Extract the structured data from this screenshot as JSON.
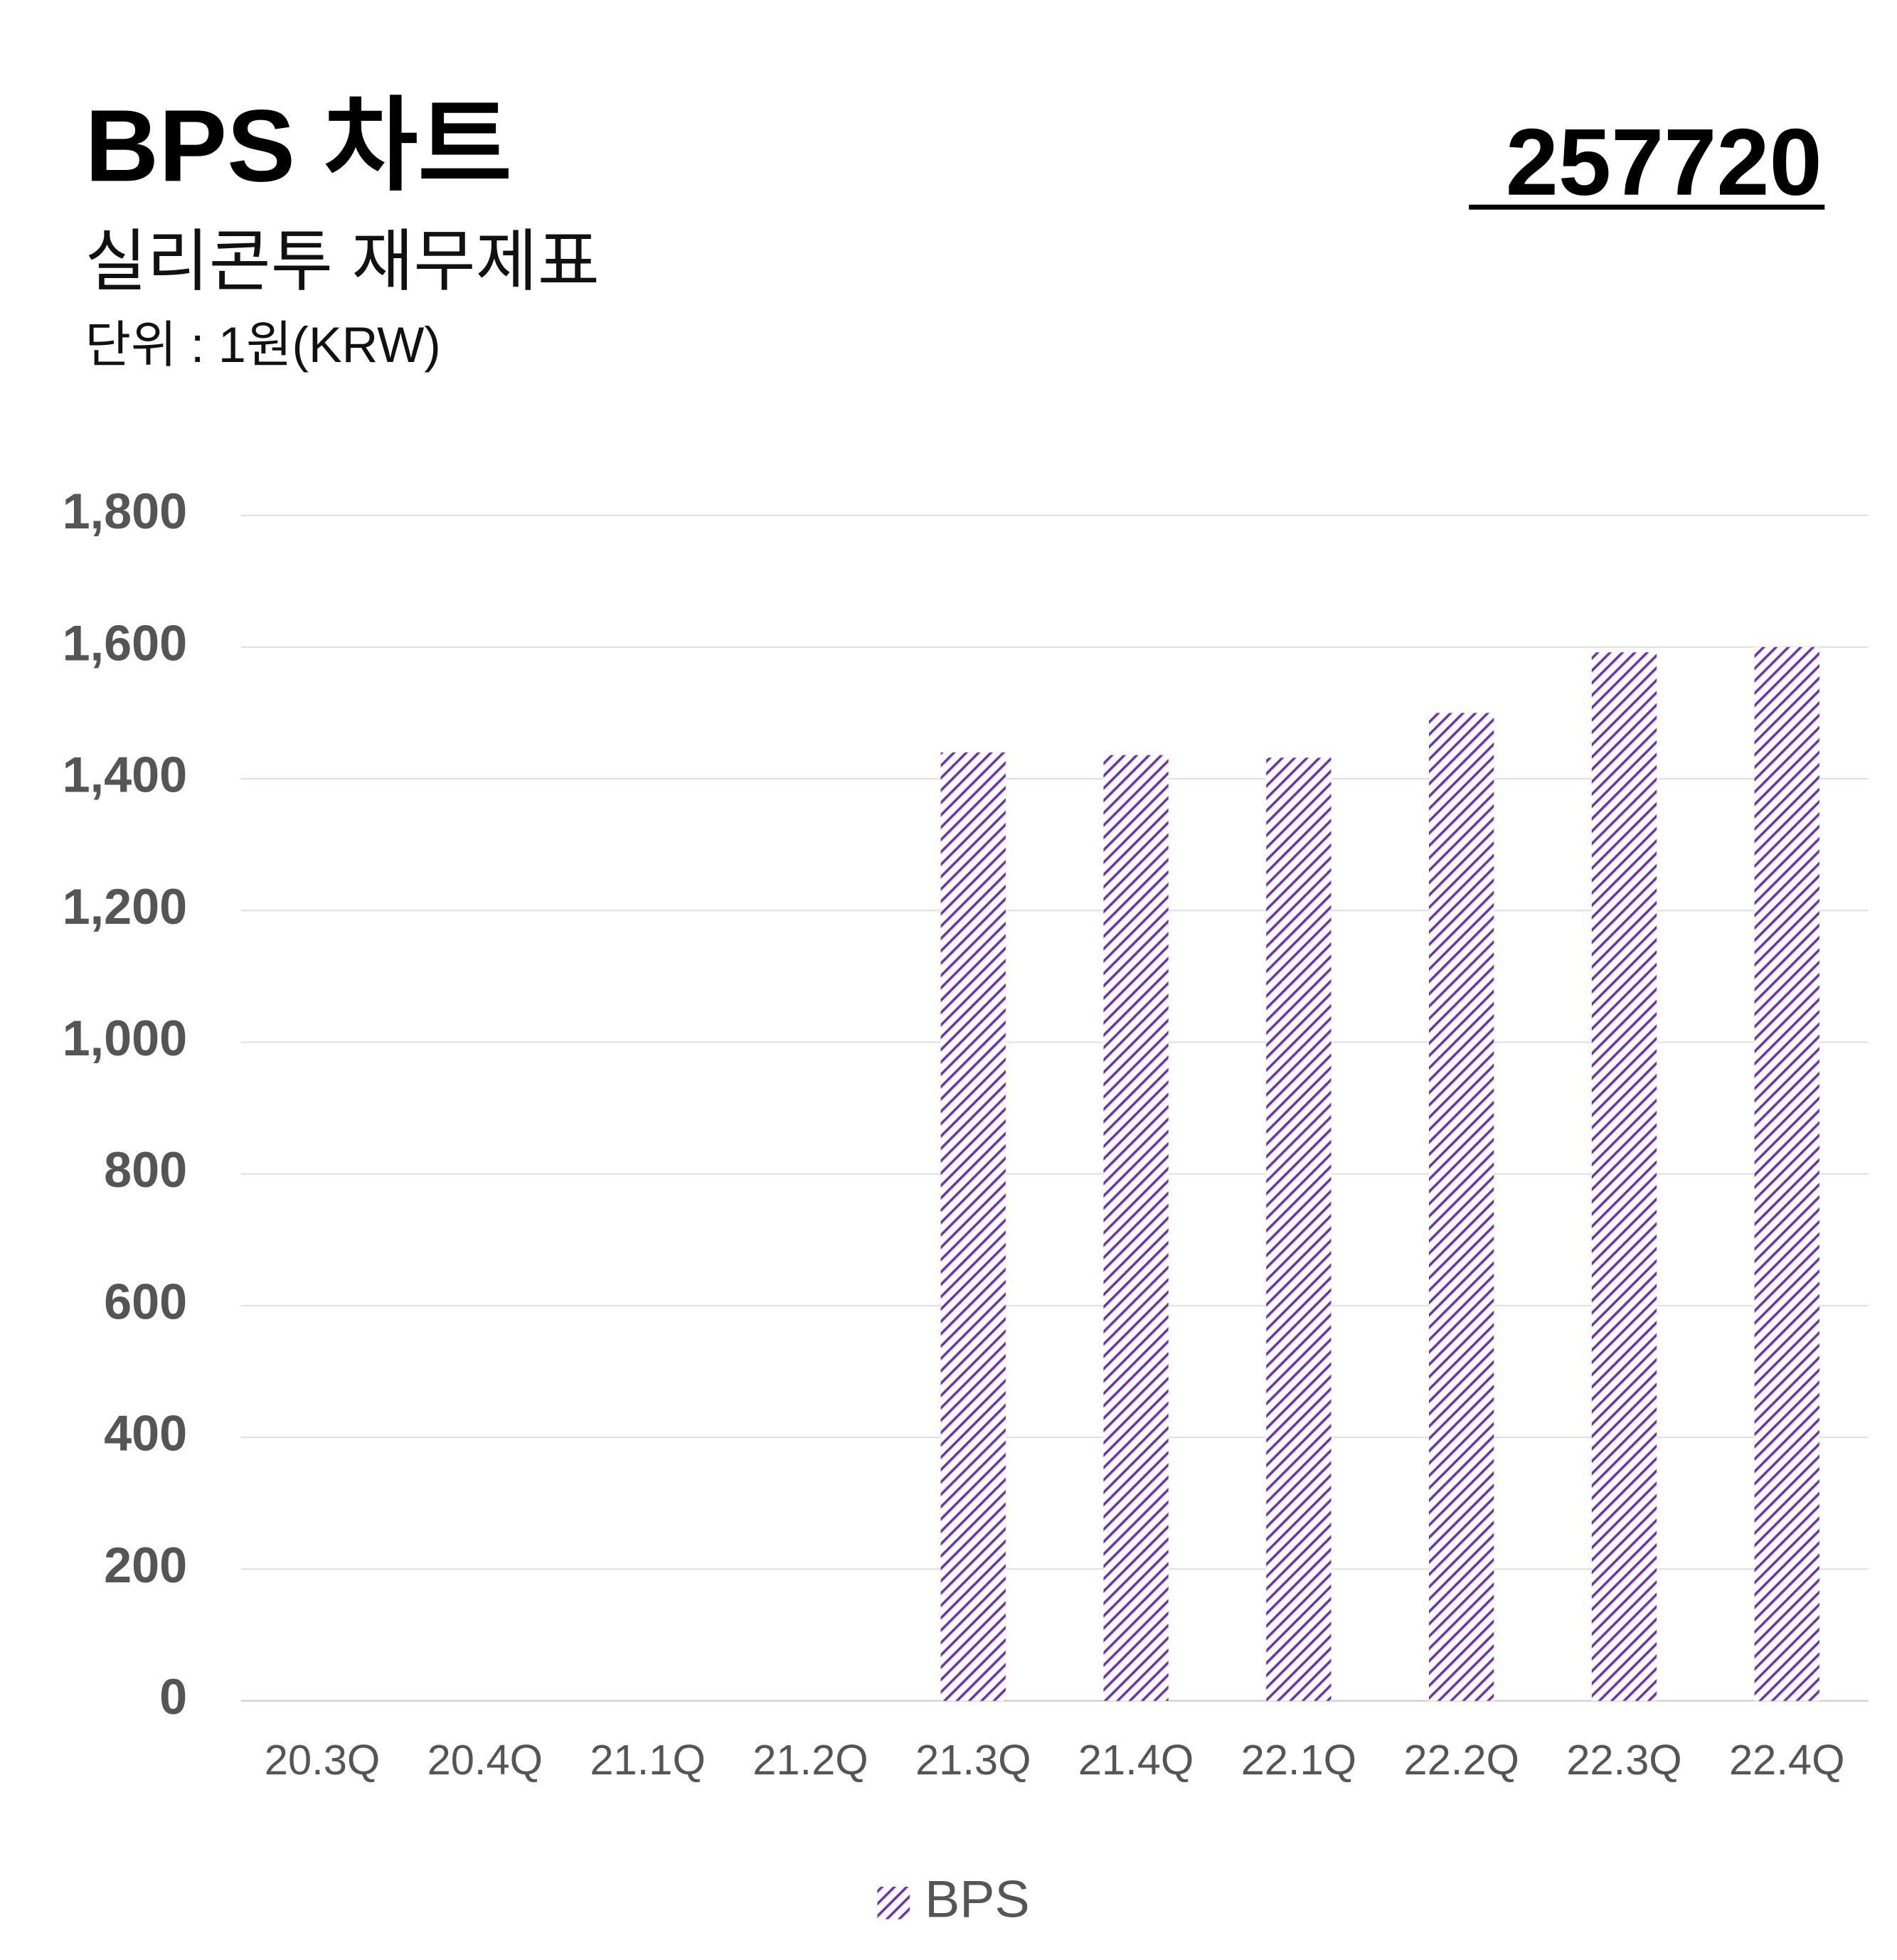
{
  "chart_data": {
    "type": "bar",
    "title": "BPS 차트",
    "subtitle": "실리콘투 재무제표",
    "unit_label": "단위 : 1원(KRW)",
    "code": "257720",
    "categories": [
      "20.3Q",
      "20.4Q",
      "21.1Q",
      "21.2Q",
      "21.3Q",
      "21.4Q",
      "22.1Q",
      "22.2Q",
      "22.3Q",
      "22.4Q"
    ],
    "series": [
      {
        "name": "BPS",
        "color": "#6a30c0",
        "values": [
          null,
          null,
          null,
          null,
          1440,
          1436,
          1432,
          1500,
          1592,
          1600
        ]
      }
    ],
    "ylim": [
      0,
      1800
    ],
    "yticks": [
      0,
      200,
      400,
      600,
      800,
      {
        "value": 1000,
        "label": "1,000"
      },
      {
        "value": 1200,
        "label": "1,200"
      },
      {
        "value": 1400,
        "label": "1,400"
      },
      {
        "value": 1600,
        "label": "1,600"
      },
      {
        "value": 1800,
        "label": "1,800"
      }
    ],
    "grid": true,
    "pattern": "hatch",
    "legend": "bottom"
  }
}
